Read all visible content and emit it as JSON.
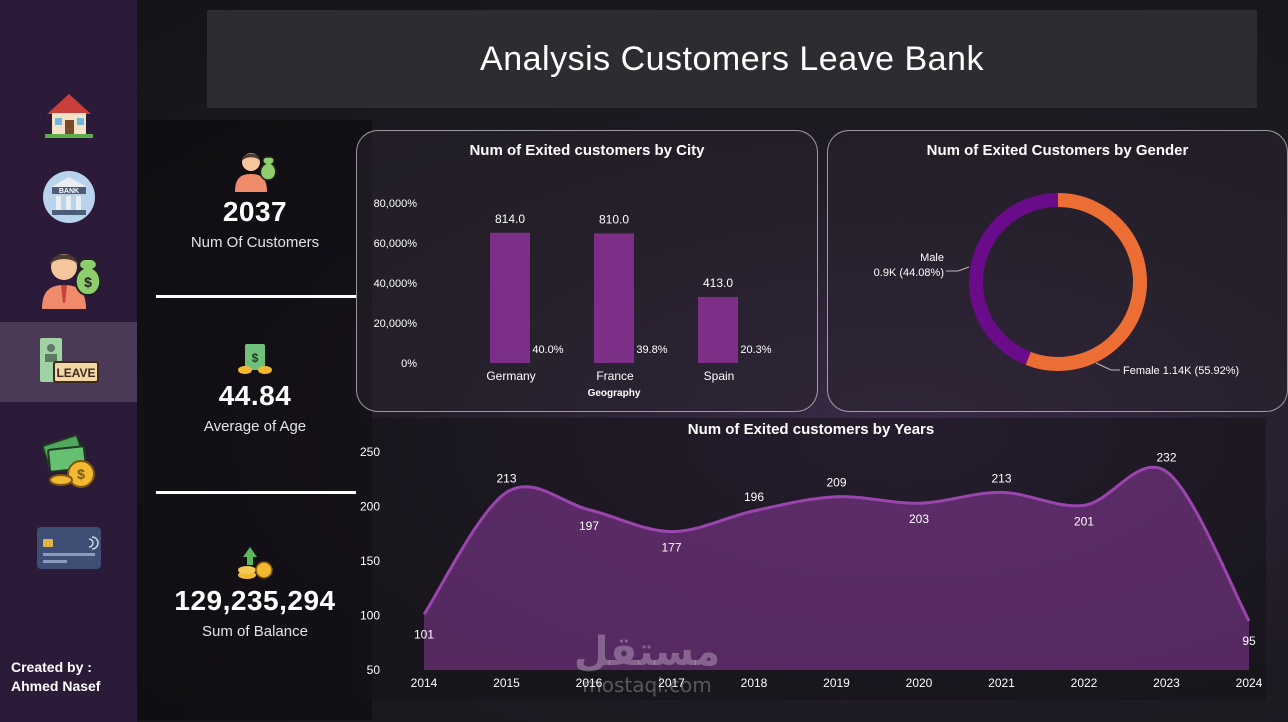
{
  "header": {
    "title": "Analysis Customers Leave Bank"
  },
  "sidebar": {
    "items": [
      {
        "name": "home",
        "label": ""
      },
      {
        "name": "bank",
        "label": "BANK"
      },
      {
        "name": "customer",
        "label": ""
      },
      {
        "name": "leave",
        "label": "LEAVE"
      },
      {
        "name": "money",
        "label": ""
      },
      {
        "name": "card",
        "label": ""
      }
    ],
    "credit_line1": "Created by :",
    "credit_line2": "Ahmed Nasef"
  },
  "kpis": [
    {
      "value": "2037",
      "label": "Num Of Customers"
    },
    {
      "value": "44.84",
      "label": "Average of Age"
    },
    {
      "value": "129,235,294",
      "label": "Sum of Balance"
    }
  ],
  "city_chart": {
    "type": "bar",
    "title": "Num of Exited customers by City",
    "xlabel": "Geography",
    "categories": [
      "Germany",
      "France",
      "Spain"
    ],
    "values": [
      814.0,
      810.0,
      413.0
    ],
    "value_labels": [
      "814.0",
      "810.0",
      "413.0"
    ],
    "percent_labels": [
      "40.0%",
      "39.8%",
      "20.3%"
    ],
    "yticks": [
      "80,000%",
      "60,000%",
      "40,000%",
      "20,000%",
      "0%"
    ],
    "ylim": [
      0,
      1000
    ],
    "color": "#7b2f86"
  },
  "gender_chart": {
    "type": "pie",
    "title": "Num of Exited Customers by Gender",
    "slices": [
      {
        "name": "Male",
        "value": 44.08,
        "label": "0.9K (44.08%)",
        "color": "#6a0c8a"
      },
      {
        "name": "Female",
        "value": 55.92,
        "label": "Female 1.14K (55.92%)",
        "color": "#ec6e35"
      }
    ]
  },
  "chart_data": {
    "type": "area",
    "title": "Num of Exited customers by Years",
    "x": [
      "2014",
      "2015",
      "2016",
      "2017",
      "2018",
      "2019",
      "2020",
      "2021",
      "2022",
      "2023",
      "2024"
    ],
    "values": [
      101,
      213,
      197,
      177,
      196,
      209,
      203,
      213,
      201,
      232,
      95
    ],
    "yticks": [
      "250",
      "200",
      "150",
      "100",
      "50"
    ],
    "ylim": [
      50,
      250
    ],
    "color": "#8a3a9a"
  },
  "watermark": {
    "arabic": "مستقل",
    "latin": "mostaql.com"
  }
}
